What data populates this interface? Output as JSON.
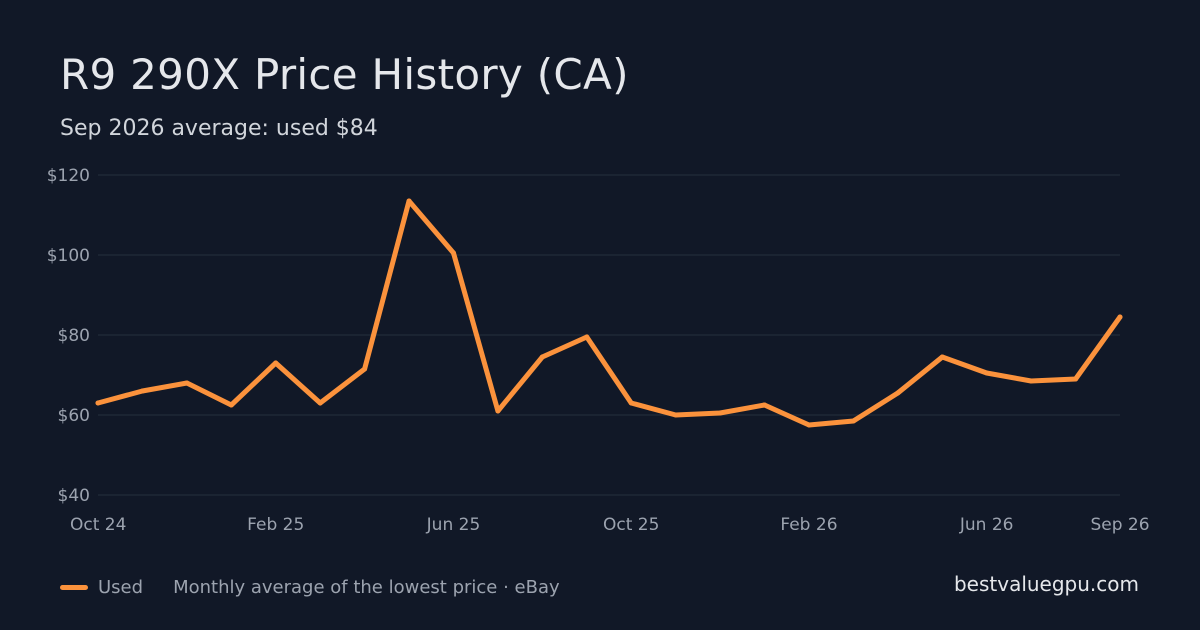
{
  "chart_data": {
    "type": "line",
    "title": "R9 290X Price History (CA)",
    "subtitle": "Sep 2026 average: used $84",
    "x": [
      "2024-10",
      "2024-11",
      "2024-12",
      "2025-01",
      "2025-02",
      "2025-03",
      "2025-04",
      "2025-05",
      "2025-06",
      "2025-07",
      "2025-08",
      "2025-09",
      "2025-10",
      "2025-11",
      "2025-12",
      "2026-01",
      "2026-02",
      "2026-03",
      "2026-04",
      "2026-05",
      "2026-06",
      "2026-07",
      "2026-08",
      "2026-09"
    ],
    "x_tick_labels": [
      "Oct 24",
      "Feb 25",
      "Jun 25",
      "Oct 25",
      "Feb 26",
      "Jun 26",
      "Sep 26"
    ],
    "x_tick_positions": [
      "2024-10",
      "2025-02",
      "2025-06",
      "2025-10",
      "2026-02",
      "2026-06",
      "2026-09"
    ],
    "y_tick_values": [
      40,
      60,
      80,
      100,
      120
    ],
    "y_tick_labels": [
      "$40",
      "$60",
      "$80",
      "$100",
      "$120"
    ],
    "ylim": [
      40,
      120
    ],
    "grid": true,
    "series": [
      {
        "name": "Used",
        "color": "#fb923c",
        "values": [
          63,
          66,
          68,
          62.5,
          73,
          63,
          71.5,
          113.5,
          100.5,
          61,
          74.5,
          79.5,
          63,
          60,
          60.5,
          62.5,
          57.5,
          58.5,
          65.5,
          74.5,
          70.5,
          68.5,
          69,
          84.5
        ]
      }
    ],
    "legend_position": "bottom-left",
    "footnote": "Monthly average of the lowest price · eBay",
    "brand": "bestvaluegpu.com"
  },
  "colors": {
    "background": "#111827",
    "grid": "#1f2937",
    "axis_text": "#9ca3af",
    "title_text": "#e5e7eb"
  }
}
